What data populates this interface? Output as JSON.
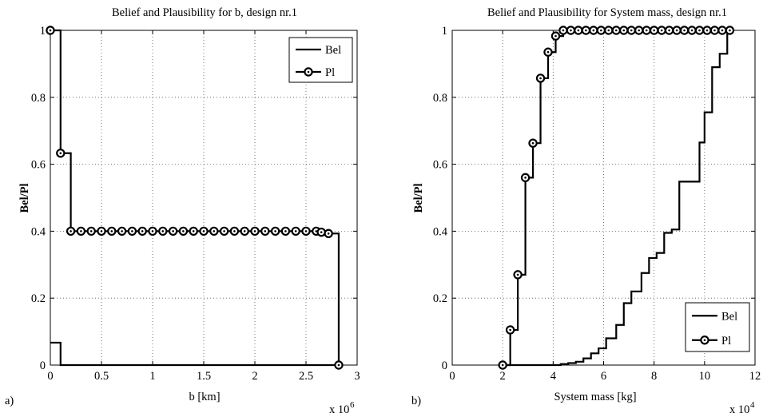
{
  "chart_data": [
    {
      "type": "line",
      "title": "Belief and Plausibility for b, design nr.1",
      "xlabel": "b [km]",
      "ylabel": "Bel/Pl",
      "x_exponent_base": "x 10",
      "x_exponent": "6",
      "panel_label": "a)",
      "xlim": [
        0,
        3
      ],
      "ylim": [
        0,
        1
      ],
      "xticks": [
        "0",
        "0.5",
        "1",
        "1.5",
        "2",
        "2.5",
        "3"
      ],
      "yticks": [
        "0",
        "0.2",
        "0.4",
        "0.6",
        "0.8",
        "1"
      ],
      "legend": {
        "placement": "top-right",
        "entries": [
          "Bel",
          "Pl"
        ]
      },
      "grid": true,
      "series": [
        {
          "name": "Bel",
          "step": true,
          "marker": "none",
          "x": [
            0,
            0.1,
            2.72,
            2.82
          ],
          "y": [
            0.067,
            0,
            0,
            0
          ]
        },
        {
          "name": "Pl",
          "step": true,
          "marker": "circle",
          "x": [
            0,
            0.1,
            0.2,
            0.3,
            0.4,
            0.5,
            0.6,
            0.7,
            0.8,
            0.9,
            1.0,
            1.1,
            1.2,
            1.3,
            1.4,
            1.5,
            1.6,
            1.7,
            1.8,
            1.9,
            2.0,
            2.1,
            2.2,
            2.3,
            2.4,
            2.5,
            2.6,
            2.65,
            2.72,
            2.82
          ],
          "y": [
            1.0,
            0.633,
            0.4,
            0.4,
            0.4,
            0.4,
            0.4,
            0.4,
            0.4,
            0.4,
            0.4,
            0.4,
            0.4,
            0.4,
            0.4,
            0.4,
            0.4,
            0.4,
            0.4,
            0.4,
            0.4,
            0.4,
            0.4,
            0.4,
            0.4,
            0.4,
            0.4,
            0.397,
            0.393,
            0
          ]
        }
      ]
    },
    {
      "type": "line",
      "title": "Belief and Plausibility for System mass, design nr.1",
      "xlabel": "System mass [kg]",
      "ylabel": "Bel/Pl",
      "x_exponent_base": "x 10",
      "x_exponent": "4",
      "panel_label": "b)",
      "xlim": [
        0,
        12
      ],
      "ylim": [
        0,
        1
      ],
      "xticks": [
        "0",
        "2",
        "4",
        "6",
        "8",
        "10",
        "12"
      ],
      "yticks": [
        "0",
        "0.2",
        "0.4",
        "0.6",
        "0.8",
        "1"
      ],
      "legend": {
        "placement": "bottom-right",
        "entries": [
          "Bel",
          "Pl"
        ]
      },
      "grid": true,
      "series": [
        {
          "name": "Bel",
          "step": true,
          "marker": "none",
          "x": [
            2.0,
            4.0,
            4.3,
            4.6,
            4.9,
            5.2,
            5.5,
            5.8,
            6.1,
            6.5,
            6.8,
            7.1,
            7.5,
            7.8,
            8.1,
            8.4,
            8.7,
            9.0,
            9.5,
            9.8,
            10.0,
            10.3,
            10.6,
            10.9,
            11.0
          ],
          "y": [
            0,
            0,
            0.003,
            0.006,
            0.01,
            0.02,
            0.035,
            0.05,
            0.08,
            0.12,
            0.185,
            0.22,
            0.275,
            0.32,
            0.335,
            0.395,
            0.405,
            0.548,
            0.548,
            0.665,
            0.755,
            0.89,
            0.93,
            1.0,
            1.0
          ]
        },
        {
          "name": "Pl",
          "step": true,
          "marker": "circle",
          "x": [
            2.0,
            2.3,
            2.6,
            2.9,
            3.2,
            3.5,
            3.8,
            4.1,
            4.4,
            4.7,
            5.0,
            5.3,
            5.6,
            5.9,
            6.2,
            6.5,
            6.8,
            7.1,
            7.4,
            7.7,
            8.0,
            8.3,
            8.6,
            8.9,
            9.2,
            9.5,
            9.8,
            10.1,
            10.4,
            10.7,
            11.0
          ],
          "y": [
            0,
            0.105,
            0.27,
            0.56,
            0.663,
            0.857,
            0.935,
            0.983,
            1.0,
            1.0,
            1.0,
            1.0,
            1.0,
            1.0,
            1.0,
            1.0,
            1.0,
            1.0,
            1.0,
            1.0,
            1.0,
            1.0,
            1.0,
            1.0,
            1.0,
            1.0,
            1.0,
            1.0,
            1.0,
            1.0,
            1.0
          ]
        }
      ]
    }
  ]
}
